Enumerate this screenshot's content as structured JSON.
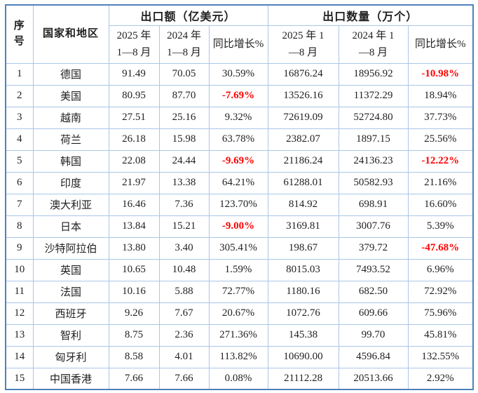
{
  "table": {
    "header": {
      "seq": "序\n号",
      "country": "国家和地区",
      "export_group": "出口额（亿美元）",
      "qty_group": "出口数量（万个）",
      "export_2025": "2025 年\n1—8 月",
      "export_2024": "2024 年\n1—8 月",
      "export_growth": "同比增长%",
      "qty_2025": "2025 年 1\n—8 月",
      "qty_2024": "2024 年 1\n—8 月",
      "qty_growth": "同比增长%"
    },
    "rows": [
      {
        "seq": "1",
        "country": "德国",
        "export_2025": "91.49",
        "export_2024": "70.05",
        "export_growth": "30.59%",
        "qty_2025": "16876.24",
        "qty_2024": "18956.92",
        "qty_growth": "-10.98%"
      },
      {
        "seq": "2",
        "country": "美国",
        "export_2025": "80.95",
        "export_2024": "87.70",
        "export_growth": "-7.69%",
        "qty_2025": "13526.16",
        "qty_2024": "11372.29",
        "qty_growth": "18.94%"
      },
      {
        "seq": "3",
        "country": "越南",
        "export_2025": "27.51",
        "export_2024": "25.16",
        "export_growth": "9.32%",
        "qty_2025": "72619.09",
        "qty_2024": "52724.80",
        "qty_growth": "37.73%"
      },
      {
        "seq": "4",
        "country": "荷兰",
        "export_2025": "26.18",
        "export_2024": "15.98",
        "export_growth": "63.78%",
        "qty_2025": "2382.07",
        "qty_2024": "1897.15",
        "qty_growth": "25.56%"
      },
      {
        "seq": "5",
        "country": "韩国",
        "export_2025": "22.08",
        "export_2024": "24.44",
        "export_growth": "-9.69%",
        "qty_2025": "21186.24",
        "qty_2024": "24136.23",
        "qty_growth": "-12.22%"
      },
      {
        "seq": "6",
        "country": "印度",
        "export_2025": "21.97",
        "export_2024": "13.38",
        "export_growth": "64.21%",
        "qty_2025": "61288.01",
        "qty_2024": "50582.93",
        "qty_growth": "21.16%"
      },
      {
        "seq": "7",
        "country": "澳大利亚",
        "export_2025": "16.46",
        "export_2024": "7.36",
        "export_growth": "123.70%",
        "qty_2025": "814.92",
        "qty_2024": "698.91",
        "qty_growth": "16.60%"
      },
      {
        "seq": "8",
        "country": "日本",
        "export_2025": "13.84",
        "export_2024": "15.21",
        "export_growth": "-9.00%",
        "qty_2025": "3169.81",
        "qty_2024": "3007.76",
        "qty_growth": "5.39%"
      },
      {
        "seq": "9",
        "country": "沙特阿拉伯",
        "export_2025": "13.80",
        "export_2024": "3.40",
        "export_growth": "305.41%",
        "qty_2025": "198.67",
        "qty_2024": "379.72",
        "qty_growth": "-47.68%"
      },
      {
        "seq": "10",
        "country": "英国",
        "export_2025": "10.65",
        "export_2024": "10.48",
        "export_growth": "1.59%",
        "qty_2025": "8015.03",
        "qty_2024": "7493.52",
        "qty_growth": "6.96%"
      },
      {
        "seq": "11",
        "country": "法国",
        "export_2025": "10.16",
        "export_2024": "5.88",
        "export_growth": "72.77%",
        "qty_2025": "1180.16",
        "qty_2024": "682.50",
        "qty_growth": "72.92%"
      },
      {
        "seq": "12",
        "country": "西班牙",
        "export_2025": "9.26",
        "export_2024": "7.67",
        "export_growth": "20.67%",
        "qty_2025": "1072.76",
        "qty_2024": "609.66",
        "qty_growth": "75.96%"
      },
      {
        "seq": "13",
        "country": "智利",
        "export_2025": "8.75",
        "export_2024": "2.36",
        "export_growth": "271.36%",
        "qty_2025": "145.38",
        "qty_2024": "99.70",
        "qty_growth": "45.81%"
      },
      {
        "seq": "14",
        "country": "匈牙利",
        "export_2025": "8.58",
        "export_2024": "4.01",
        "export_growth": "113.82%",
        "qty_2025": "10690.00",
        "qty_2024": "4596.84",
        "qty_growth": "132.55%"
      },
      {
        "seq": "15",
        "country": "中国香港",
        "export_2025": "7.66",
        "export_2024": "7.66",
        "export_growth": "0.08%",
        "qty_2025": "21112.28",
        "qty_2024": "20513.66",
        "qty_growth": "2.92%"
      }
    ]
  },
  "colors": {
    "outer_border": "#4f81bd",
    "grid_border": "#a9c6e7",
    "negative_value": "#ff0000",
    "text": "#1f1f1f",
    "background": "#ffffff"
  }
}
